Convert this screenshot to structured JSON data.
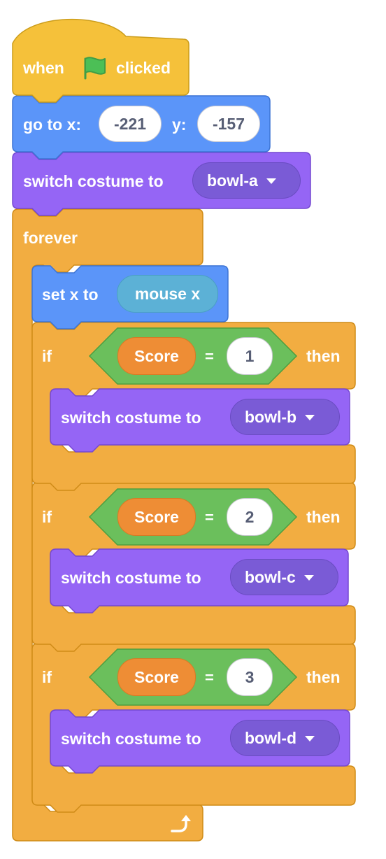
{
  "script": {
    "hat": {
      "label_left": "when",
      "flag_icon": "green-flag-icon",
      "label_right": "clicked"
    },
    "goto": {
      "label": "go to x:",
      "x_value": "-221",
      "y_label": "y:",
      "y_value": "-157"
    },
    "switch_costume_1": {
      "label": "switch costume to",
      "costume": "bowl-a"
    },
    "forever": {
      "label": "forever",
      "loop_icon": "loop-arrow-icon"
    },
    "set_x": {
      "label": "set x to",
      "reporter": "mouse x"
    },
    "if_blocks": [
      {
        "if_label": "if",
        "variable": "Score",
        "operator": "=",
        "value": "1",
        "then_label": "then",
        "action_label": "switch costume to",
        "costume": "bowl-b"
      },
      {
        "if_label": "if",
        "variable": "Score",
        "operator": "=",
        "value": "2",
        "then_label": "then",
        "action_label": "switch costume to",
        "costume": "bowl-c"
      },
      {
        "if_label": "if",
        "variable": "Score",
        "operator": "=",
        "value": "3",
        "then_label": "then",
        "action_label": "switch costume to",
        "costume": "bowl-d"
      }
    ]
  },
  "colors": {
    "events": "#f5c13a",
    "events_border": "#cc9d1b",
    "motion": "#5b95f9",
    "motion_border": "#3d74d4",
    "looks": "#9565f5",
    "looks_border": "#7548d1",
    "control": "#f2ad41",
    "control_border": "#cf8b17",
    "operators": "#6bbf5c",
    "operators_border": "#4e9e40",
    "flag": "#4cbf56"
  }
}
